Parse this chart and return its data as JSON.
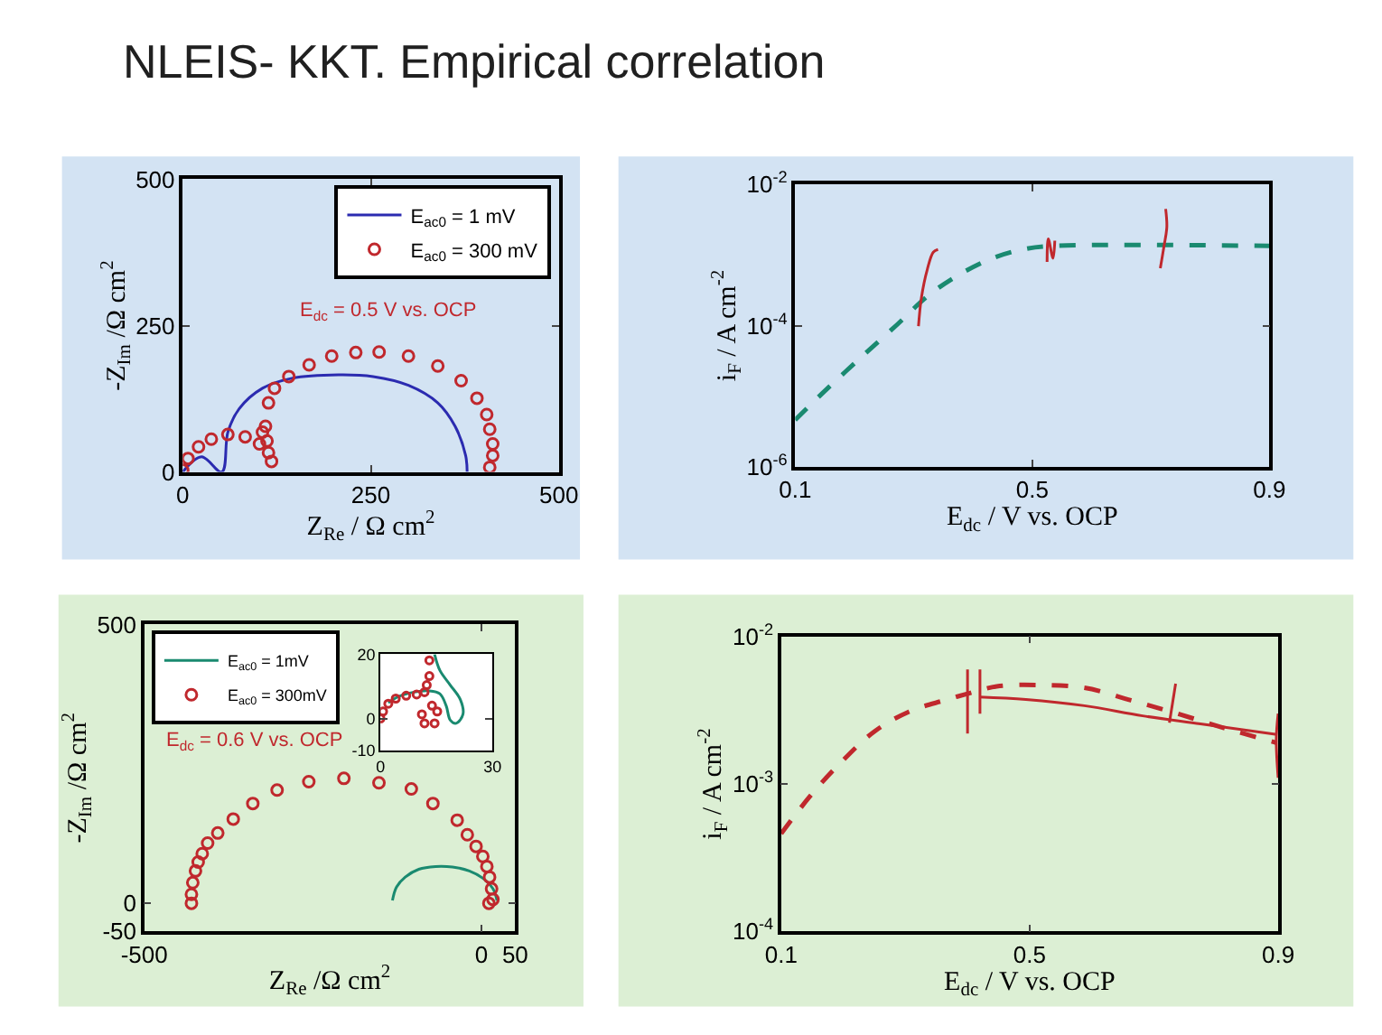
{
  "chart_data": [
    {
      "type": "scatter",
      "title": "NLEIS- KKT. Empirical correlation",
      "xlabel": "Z$_{Re}$ / Ω cm$^{2}$",
      "ylabel": "-Z$_{Im}$ /Ω cm$^{2}$",
      "xlim": [
        0,
        500
      ],
      "xticks": [
        0,
        250,
        500
      ],
      "ylim": [
        0,
        500
      ],
      "yticks": [
        0,
        250,
        500
      ],
      "legend": "top right",
      "grid": false,
      "annotations": [
        "E$_{dc}$ = 0.5 V vs. OCP"
      ],
      "series": [
        {
          "name": "E$_{ac0}$ = 1 mV",
          "type": "line",
          "color": "#2b2bb0",
          "x": [
            0,
            25,
            52,
            60,
            75,
            106,
            145,
            207,
            253,
            300,
            339,
            362,
            376,
            378
          ],
          "values": [
            0,
            26,
            0,
            68,
            108,
            143,
            160,
            166,
            163,
            148,
            118,
            78,
            28,
            0
          ]
        },
        {
          "name": "E$_{ac0}$ = 300 mV",
          "type": "scatter",
          "marker": "circle",
          "color": "#c0282d",
          "x": [
            0,
            7,
            21,
            38,
            60,
            83,
            102,
            114,
            118,
            112,
            106,
            110,
            114,
            122,
            141,
            168,
            198,
            230,
            261,
            300,
            339,
            370,
            391,
            404,
            408,
            412,
            412,
            408
          ],
          "values": [
            3,
            23,
            43,
            56,
            64,
            60,
            48,
            33,
            18,
            53,
            68,
            78,
            118,
            143,
            163,
            183,
            198,
            204,
            205,
            198,
            181,
            156,
            126,
            98,
            73,
            48,
            28,
            8
          ]
        }
      ]
    },
    {
      "type": "line",
      "xlabel": "E$_{dc}$ / V vs. OCP",
      "ylabel": "i$_{F}$ / A cm$^{-2}$",
      "log": "y",
      "xlim": [
        0.1,
        0.9
      ],
      "xticks": [
        0.1,
        0.5,
        0.9
      ],
      "ylim": [
        1e-06,
        0.01
      ],
      "yticks": [
        {
          "value": 1e-06,
          "label": "10$^{-6}$"
        },
        {
          "value": 0.0001,
          "label": "10$^{-4}$"
        },
        {
          "value": 0.01,
          "label": "10$^{-2}$"
        }
      ],
      "grid": false,
      "series": [
        {
          "color": "#1a8a70",
          "line_style": "dashed",
          "x": [
            0.1,
            0.146,
            0.215,
            0.274,
            0.323,
            0.372,
            0.431,
            0.49,
            0.539,
            0.9
          ],
          "values": [
            4.6e-06,
            1.1e-05,
            3.8e-05,
            0.000107,
            0.00026,
            0.0005,
            0.00089,
            0.00123,
            0.00135,
            0.00135
          ]
        },
        {
          "color": "#c0282d",
          "line_style": "solid",
          "x": [
            0.308,
            0.313,
            0.323,
            0.333,
            0.341
          ],
          "values": [
            9.8e-05,
            0.00025,
            0.00063,
            0.0011,
            0.0012
          ]
        },
        {
          "color": "#c0282d",
          "line_style": "solid",
          "x": [
            0.525,
            0.527,
            0.535,
            0.538
          ],
          "values": [
            0.0008,
            0.0017,
            0.0009,
            0.0016
          ]
        },
        {
          "color": "#c0282d",
          "line_style": "solid",
          "x": [
            0.725,
            0.727,
            0.722,
            0.716
          ],
          "values": [
            0.0045,
            0.0025,
            0.0013,
            0.00065
          ]
        }
      ]
    },
    {
      "type": "scatter",
      "xlabel": "Z$_{Re}$ /Ω cm$^{2}$",
      "ylabel": "-Z$_{Im}$ /Ω cm$^{2}$",
      "xlim": [
        -500,
        50
      ],
      "xticks": [
        -500,
        0,
        50
      ],
      "ylim": [
        -50,
        500
      ],
      "yticks": [
        -50,
        0,
        500
      ],
      "legend": "top left",
      "grid": false,
      "annotations": [
        "E$_{dc}$ = 0.6 V vs. OCP"
      ],
      "series": [
        {
          "name": "E$_{ac0}$ = 1mV",
          "type": "line",
          "color": "#1a8a70",
          "x": [
            -132,
            -126,
            -113,
            -93,
            -68,
            -43,
            -18,
            2,
            17,
            23
          ],
          "values": [
            5,
            29,
            47,
            61,
            66,
            65,
            58,
            45,
            26,
            5
          ]
        },
        {
          "name": "E$_{ac0}$ = 300mV",
          "type": "scatter",
          "marker": "circle",
          "color": "#c0282d",
          "x": [
            -430,
            -430,
            -428,
            -424,
            -420,
            -414,
            -406,
            -391,
            -368,
            -339,
            -303,
            -256,
            -204,
            -152,
            -104,
            -72,
            -36,
            -21,
            -8,
            2,
            8,
            12,
            15,
            17,
            11
          ],
          "values": [
            0,
            16,
            37,
            58,
            74,
            89,
            108,
            126,
            151,
            179,
            203,
            218,
            224,
            216,
            205,
            179,
            149,
            123,
            102,
            84,
            66,
            47,
            26,
            7,
            0
          ]
        }
      ]
    },
    {
      "type": "line",
      "xlabel": "E$_{dc}$ / V vs. OCP",
      "ylabel": "i$_{F}$ / A cm$^{-2}$",
      "log": "y",
      "xlim": [
        0.1,
        0.9
      ],
      "xticks": [
        0.1,
        0.5,
        0.9
      ],
      "ylim": [
        0.0001,
        0.01
      ],
      "yticks": [
        {
          "value": 0.0001,
          "label": "10$^{-4}$"
        },
        {
          "value": 0.001,
          "label": "10$^{-3}$"
        },
        {
          "value": 0.01,
          "label": "10$^{-2}$"
        }
      ],
      "grid": false,
      "series": [
        {
          "color": "#c0282d",
          "line_style": "dashed",
          "x": [
            0.1,
            0.147,
            0.194,
            0.25,
            0.306,
            0.363,
            0.4,
            0.447,
            0.513,
            0.588,
            0.663,
            0.738,
            0.813,
            0.898
          ],
          "values": [
            0.00046,
            0.00083,
            0.00137,
            0.00227,
            0.0031,
            0.0037,
            0.0041,
            0.0046,
            0.0047,
            0.0045,
            0.0037,
            0.003,
            0.0024,
            0.0019
          ]
        },
        {
          "color": "#c0282d",
          "line_style": "solid",
          "x": [
            0.419,
            0.494,
            0.588,
            0.682,
            0.775,
            0.898
          ],
          "values": [
            0.0039,
            0.00375,
            0.0034,
            0.0029,
            0.00256,
            0.00217
          ]
        },
        {
          "color": "#c0282d",
          "line_style": "solid",
          "x": [
            0.4,
            0.4
          ],
          "values": [
            0.0022,
            0.006
          ]
        },
        {
          "color": "#c0282d",
          "line_style": "solid",
          "x": [
            0.42,
            0.42
          ],
          "values": [
            0.003,
            0.006
          ]
        },
        {
          "color": "#c0282d",
          "line_style": "solid",
          "x": [
            0.725,
            0.735
          ],
          "values": [
            0.0026,
            0.0048
          ]
        },
        {
          "color": "#c0282d",
          "line_style": "solid",
          "x": [
            0.9,
            0.897,
            0.9
          ],
          "values": [
            0.0011,
            0.002,
            0.003
          ]
        }
      ]
    },
    {
      "type": "scatter",
      "xlim": [
        0,
        30
      ],
      "xticks": [
        0,
        30
      ],
      "ylim": [
        -10,
        20
      ],
      "yticks": [
        -10,
        0,
        20
      ],
      "grid": false,
      "series": [
        {
          "type": "line",
          "color": "#1a8a70",
          "x": [
            2.1,
            4.8,
            9,
            13.1,
            15.9,
            17.6,
            18.7,
            20.3,
            22.1,
            21.4,
            18.7,
            15.9,
            14.5
          ],
          "values": [
            4.9,
            6.8,
            8.2,
            8.6,
            7.7,
            4,
            -0.5,
            -1.5,
            1.3,
            5.9,
            10.4,
            15,
            20
          ]
        },
        {
          "type": "scatter",
          "marker": "circle",
          "color": "#c0282d",
          "x": [
            0,
            0.7,
            2.1,
            4.1,
            6.9,
            9.7,
            11.8,
            12.4,
            13.1,
            13.1,
            11.1,
            11.8,
            14.5,
            15.2,
            13.8
          ],
          "values": [
            0,
            2.2,
            4.6,
            6.2,
            7.1,
            7.5,
            8.2,
            10.4,
            13.2,
            18.1,
            1.3,
            -1.5,
            -1.5,
            2.2,
            4
          ]
        }
      ]
    }
  ]
}
